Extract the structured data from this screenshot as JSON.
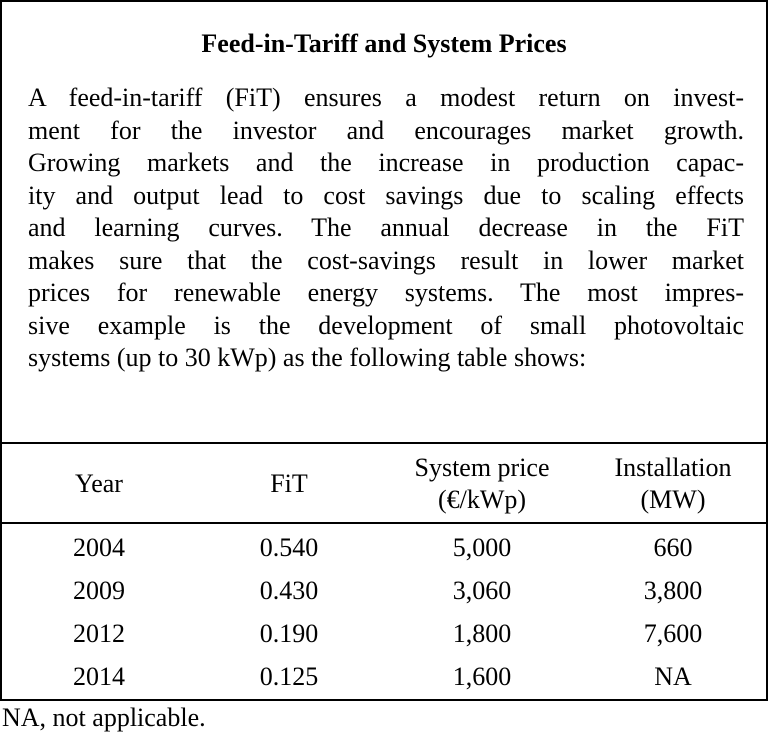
{
  "title": "Feed-in-Tariff and System Prices",
  "paragraph_lines": [
    "A feed-in-tariff (FiT) ensures a modest return on invest-",
    "ment for the investor and encourages market growth.",
    "Growing markets and the increase in production capac-",
    "ity and output lead to cost savings due to scaling effects",
    "and learning curves. The annual decrease in the FiT",
    "makes sure that the cost-savings result in lower market",
    "prices for renewable energy systems. The most impres-",
    "sive example is the development of small photovoltaic",
    "systems (up to 30 kWp) as the following table shows:"
  ],
  "table": {
    "headers": {
      "year": "Year",
      "fit": "FiT",
      "system_price_line1": "System price",
      "system_price_line2": "(€/kWp)",
      "installation_line1": "Installation",
      "installation_line2": "(MW)"
    },
    "rows": [
      {
        "year": "2004",
        "fit": "0.540",
        "system_price": "5,000",
        "installation": "660"
      },
      {
        "year": "2009",
        "fit": "0.430",
        "system_price": "3,060",
        "installation": "3,800"
      },
      {
        "year": "2012",
        "fit": "0.190",
        "system_price": "1,800",
        "installation": "7,600"
      },
      {
        "year": "2014",
        "fit": "0.125",
        "system_price": "1,600",
        "installation": "NA"
      }
    ]
  },
  "footnote": "NA, not applicable."
}
